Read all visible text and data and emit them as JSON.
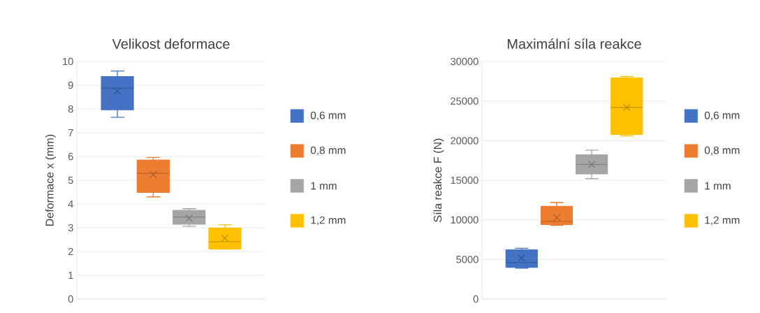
{
  "chart_data": [
    {
      "type": "box",
      "title": "Velikost deformace",
      "ylabel": "Deformace x (mm)",
      "categories": [
        null
      ],
      "ylim": [
        0,
        10
      ],
      "yticks": [
        0,
        1,
        2,
        3,
        4,
        5,
        6,
        7,
        8,
        9,
        10
      ],
      "grid": "y",
      "legend": "right",
      "series": [
        {
          "name": "0,6 mm",
          "color": "#4472c4",
          "boxes": [
            {
              "low": 7.65,
              "q1": 7.97,
              "median": 8.88,
              "q3": 9.36,
              "high": 9.6,
              "mean": 8.75
            }
          ]
        },
        {
          "name": "0,8 mm",
          "color": "#ed7d31",
          "boxes": [
            {
              "low": 4.3,
              "q1": 4.49,
              "median": 5.29,
              "q3": 5.85,
              "high": 5.96,
              "mean": 5.24
            }
          ]
        },
        {
          "name": "1 mm",
          "color": "#a5a5a5",
          "boxes": [
            {
              "low": 3.06,
              "q1": 3.15,
              "median": 3.45,
              "q3": 3.73,
              "high": 3.8,
              "mean": 3.4
            }
          ]
        },
        {
          "name": "1,2 mm",
          "color": "#ffc000",
          "boxes": [
            {
              "low": 2.1,
              "q1": 2.11,
              "median": 2.41,
              "q3": 2.99,
              "high": 3.13,
              "mean": 2.56
            }
          ]
        }
      ]
    },
    {
      "type": "box",
      "title": "Maximální síla reakce",
      "ylabel": "Síla reakce F (N)",
      "categories": [
        null
      ],
      "ylim": [
        0,
        30000
      ],
      "yticks": [
        0,
        5000,
        10000,
        15000,
        20000,
        25000,
        30000
      ],
      "grid": "y",
      "legend": "right",
      "series": [
        {
          "name": "0,6 mm",
          "color": "#4472c4",
          "boxes": [
            {
              "low": 3900,
              "q1": 4000,
              "median": 4600,
              "q3": 6200,
              "high": 6400,
              "mean": 5200
            }
          ]
        },
        {
          "name": "0,8 mm",
          "color": "#ed7d31",
          "boxes": [
            {
              "low": 9300,
              "q1": 9400,
              "median": 9800,
              "q3": 11700,
              "high": 12200,
              "mean": 10300
            }
          ]
        },
        {
          "name": "1 mm",
          "color": "#a5a5a5",
          "boxes": [
            {
              "low": 15200,
              "q1": 15800,
              "median": 17000,
              "q3": 18200,
              "high": 18800,
              "mean": 17000
            }
          ]
        },
        {
          "name": "1,2 mm",
          "color": "#ffc000",
          "boxes": [
            {
              "low": 20600,
              "q1": 20800,
              "median": 24200,
              "q3": 27900,
              "high": 28100,
              "mean": 24200
            }
          ]
        }
      ]
    }
  ]
}
